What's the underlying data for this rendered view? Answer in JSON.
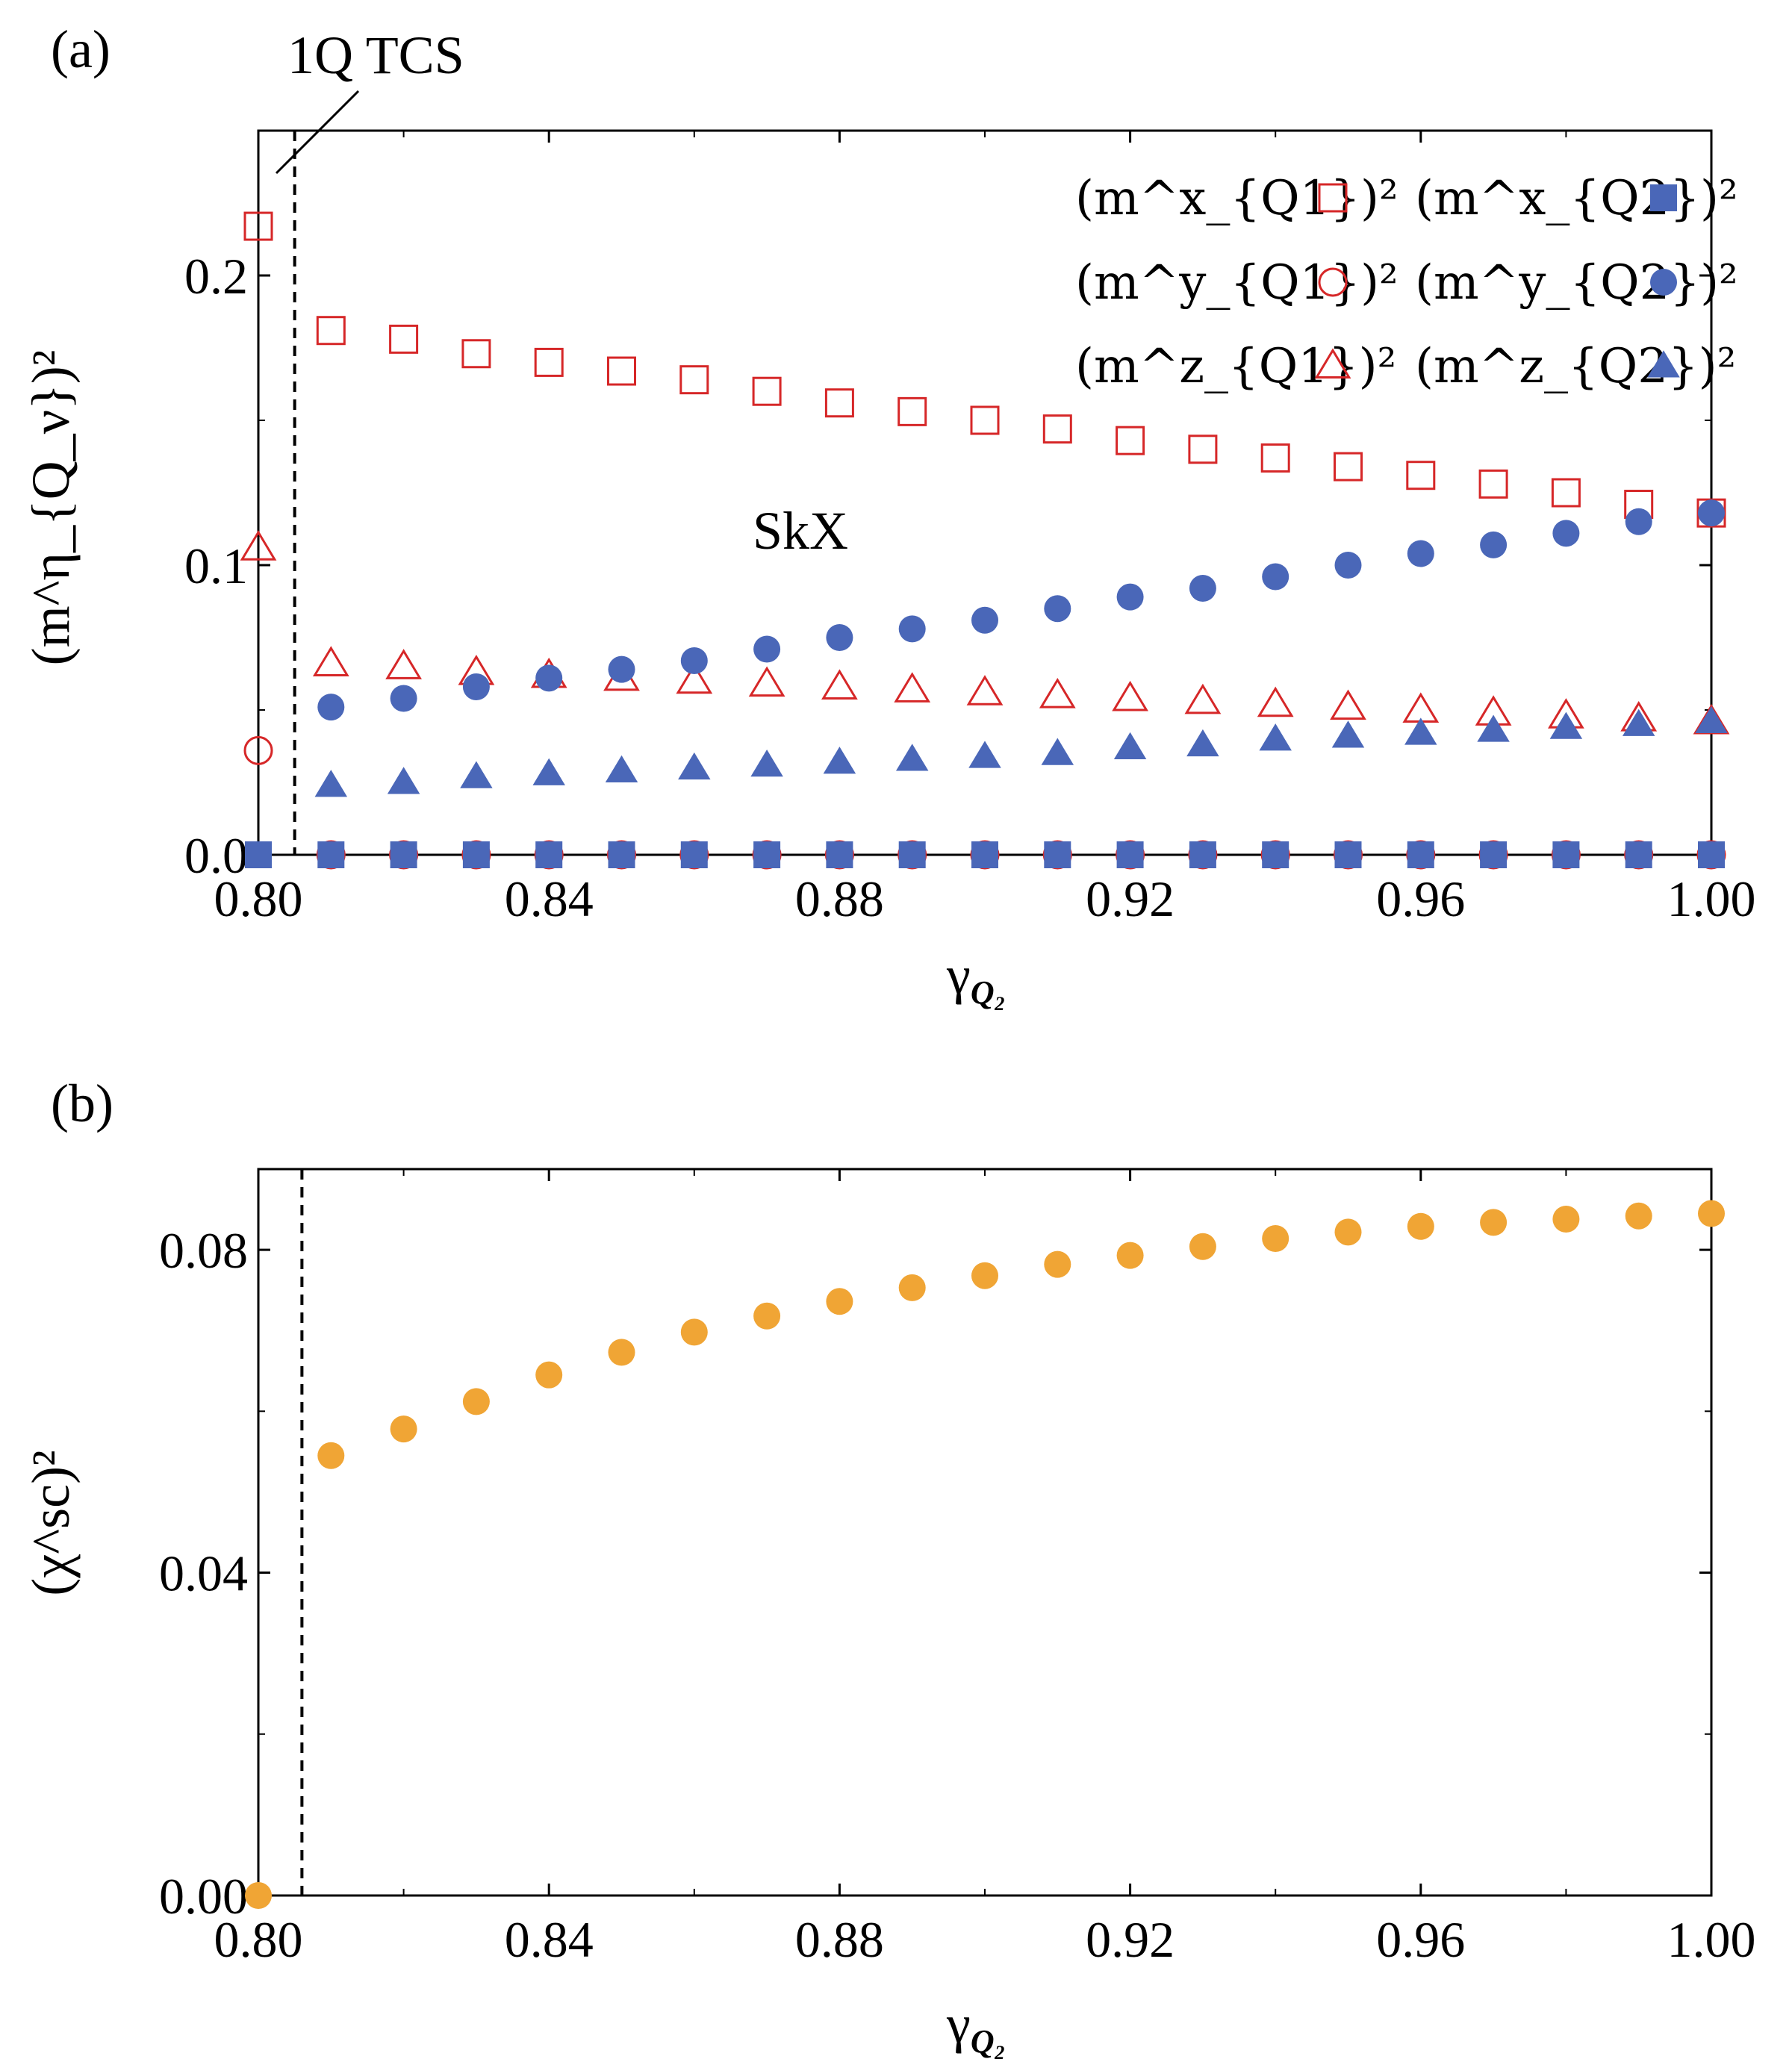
{
  "chart_data": [
    {
      "type": "scatter",
      "panel_label": "(a)",
      "xlabel": {
        "base": "γ",
        "sub": "Q₂"
      },
      "ylabel": "(m^η_{Q_ν})²",
      "xlim": [
        0.8,
        1.0
      ],
      "ylim": [
        0.0,
        0.25
      ],
      "xticks": [
        "0.80",
        "0.84",
        "0.88",
        "0.92",
        "0.96",
        "1.00"
      ],
      "yticks": [
        "0.0",
        "0.1",
        "0.2"
      ],
      "annotations": [
        {
          "text": "SkX",
          "x": 0.875,
          "y": 0.112
        },
        {
          "text": "1Q TCS",
          "label_x": 0.829,
          "label_y": 0.275
        }
      ],
      "phase_boundary_x": 0.805,
      "legend": "top-right",
      "series": [
        {
          "name": "(m^x_{Q1})²",
          "marker": "square-open",
          "color": "#d62728",
          "x": [
            0.8,
            0.81,
            0.82,
            0.83,
            0.84,
            0.85,
            0.86,
            0.87,
            0.88,
            0.89,
            0.9,
            0.91,
            0.92,
            0.93,
            0.94,
            0.95,
            0.96,
            0.97,
            0.98,
            0.99,
            1.0
          ],
          "y": [
            0.217,
            0.181,
            0.178,
            0.173,
            0.17,
            0.167,
            0.164,
            0.16,
            0.156,
            0.153,
            0.15,
            0.147,
            0.143,
            0.14,
            0.137,
            0.134,
            0.131,
            0.128,
            0.125,
            0.121,
            0.118
          ]
        },
        {
          "name": "(m^y_{Q1})²",
          "marker": "circle-open",
          "color": "#d62728",
          "x": [
            0.8,
            0.81,
            0.82,
            0.83,
            0.84,
            0.85,
            0.86,
            0.87,
            0.88,
            0.89,
            0.9,
            0.91,
            0.92,
            0.93,
            0.94,
            0.95,
            0.96,
            0.97,
            0.98,
            0.99,
            1.0
          ],
          "y": [
            0.036,
            0,
            0,
            0,
            0,
            0,
            0,
            0,
            0,
            0,
            0,
            0,
            0,
            0,
            0,
            0,
            0,
            0,
            0,
            0,
            0
          ]
        },
        {
          "name": "(m^z_{Q1})²",
          "marker": "triangle-open",
          "color": "#d62728",
          "x": [
            0.8,
            0.81,
            0.82,
            0.83,
            0.84,
            0.85,
            0.86,
            0.87,
            0.88,
            0.89,
            0.9,
            0.91,
            0.92,
            0.93,
            0.94,
            0.95,
            0.96,
            0.97,
            0.98,
            0.99,
            1.0
          ],
          "y": [
            0.106,
            0.066,
            0.065,
            0.063,
            0.062,
            0.061,
            0.06,
            0.059,
            0.058,
            0.057,
            0.056,
            0.055,
            0.054,
            0.053,
            0.052,
            0.051,
            0.05,
            0.049,
            0.048,
            0.047,
            0.046
          ]
        },
        {
          "name": "(m^x_{Q2})²",
          "marker": "square-filled",
          "color": "#4a67b8",
          "x": [
            0.8,
            0.81,
            0.82,
            0.83,
            0.84,
            0.85,
            0.86,
            0.87,
            0.88,
            0.89,
            0.9,
            0.91,
            0.92,
            0.93,
            0.94,
            0.95,
            0.96,
            0.97,
            0.98,
            0.99,
            1.0
          ],
          "y": [
            0,
            0,
            0,
            0,
            0,
            0,
            0,
            0,
            0,
            0,
            0,
            0,
            0,
            0,
            0,
            0,
            0,
            0,
            0,
            0,
            0
          ]
        },
        {
          "name": "(m^y_{Q2})²",
          "marker": "circle-filled",
          "color": "#4a67b8",
          "x": [
            0.81,
            0.82,
            0.83,
            0.84,
            0.85,
            0.86,
            0.87,
            0.88,
            0.89,
            0.9,
            0.91,
            0.92,
            0.93,
            0.94,
            0.95,
            0.96,
            0.97,
            0.98,
            0.99,
            1.0
          ],
          "y": [
            0.051,
            0.054,
            0.058,
            0.061,
            0.064,
            0.067,
            0.071,
            0.075,
            0.078,
            0.081,
            0.085,
            0.089,
            0.092,
            0.096,
            0.1,
            0.104,
            0.107,
            0.111,
            0.115,
            0.118
          ]
        },
        {
          "name": "(m^z_{Q2})²",
          "marker": "triangle-filled",
          "color": "#4a67b8",
          "x": [
            0.81,
            0.82,
            0.83,
            0.84,
            0.85,
            0.86,
            0.87,
            0.88,
            0.89,
            0.9,
            0.91,
            0.92,
            0.93,
            0.94,
            0.95,
            0.96,
            0.97,
            0.98,
            0.99,
            1.0
          ],
          "y": [
            0.024,
            0.025,
            0.027,
            0.028,
            0.029,
            0.03,
            0.031,
            0.032,
            0.033,
            0.034,
            0.035,
            0.037,
            0.038,
            0.04,
            0.041,
            0.042,
            0.043,
            0.044,
            0.045,
            0.046
          ]
        }
      ]
    },
    {
      "type": "scatter",
      "panel_label": "(b)",
      "xlabel": {
        "base": "γ",
        "sub": "Q₂"
      },
      "ylabel": "(χ^sc)²",
      "xlim": [
        0.8,
        1.0
      ],
      "ylim": [
        0.0,
        0.09
      ],
      "xticks": [
        "0.80",
        "0.84",
        "0.88",
        "0.92",
        "0.96",
        "1.00"
      ],
      "yticks": [
        "0.00",
        "0.04",
        "0.08"
      ],
      "phase_boundary_x": 0.806,
      "series": [
        {
          "marker": "circle-filled",
          "color": "#f0a535",
          "x": [
            0.8,
            0.81,
            0.82,
            0.83,
            0.84,
            0.85,
            0.86,
            0.87,
            0.88,
            0.89,
            0.9,
            0.91,
            0.92,
            0.93,
            0.94,
            0.95,
            0.96,
            0.97,
            0.98,
            0.99,
            1.0
          ],
          "y": [
            0,
            0.0545,
            0.0578,
            0.0612,
            0.0645,
            0.0673,
            0.0698,
            0.0718,
            0.0736,
            0.0753,
            0.0768,
            0.0782,
            0.0793,
            0.0804,
            0.0814,
            0.0822,
            0.0829,
            0.0834,
            0.0838,
            0.0842,
            0.0845
          ]
        }
      ]
    }
  ]
}
